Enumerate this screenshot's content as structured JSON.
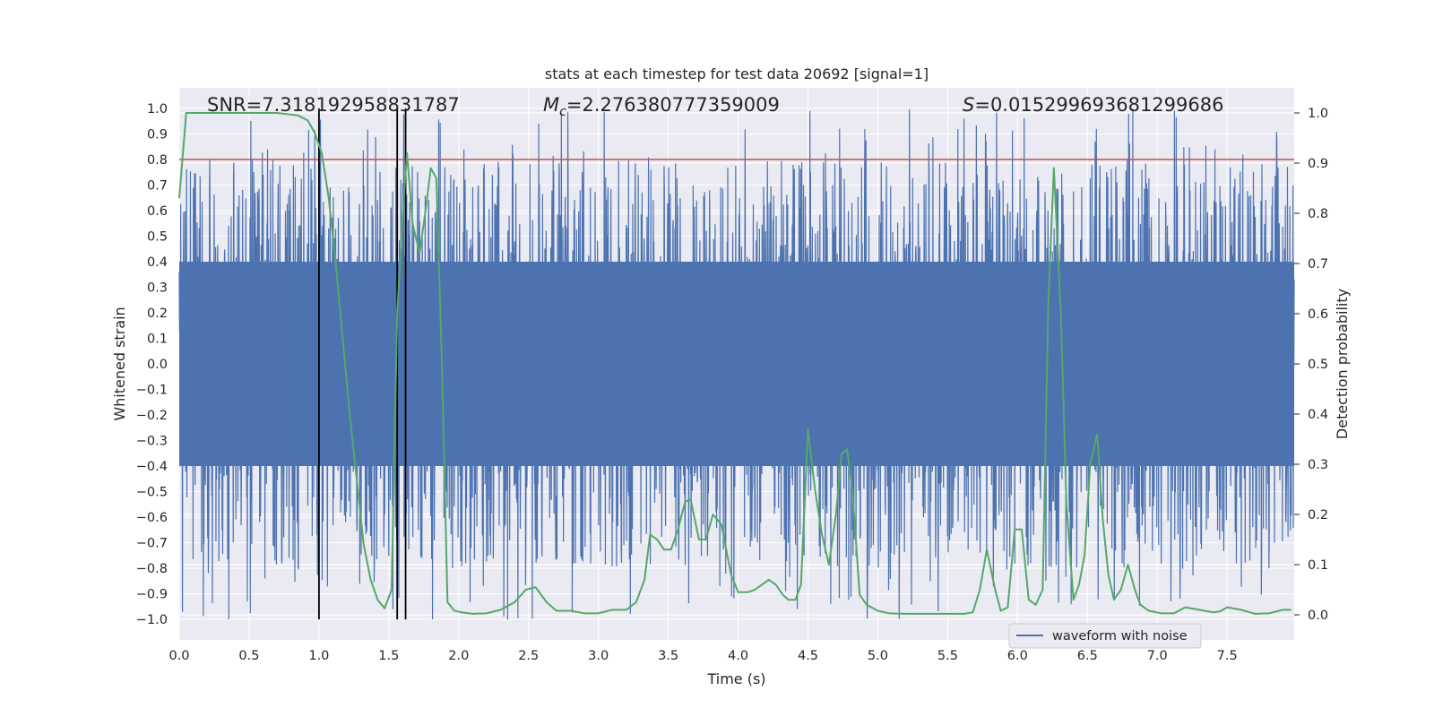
{
  "chart_data": {
    "type": "line",
    "title": "stats at each timestep for test data 20692 [signal=1]",
    "xlabel": "Time (s)",
    "ylabel": "Whitened strain",
    "ylabel_right": "Detection probability",
    "xlim": [
      0.0,
      7.98
    ],
    "ylim": [
      -1.08,
      1.08
    ],
    "ylim_right": [
      -0.05,
      1.05
    ],
    "x_ticks": [
      "0.0",
      "0.5",
      "1.0",
      "1.5",
      "2.0",
      "2.5",
      "3.0",
      "3.5",
      "4.0",
      "4.5",
      "5.0",
      "5.5",
      "6.0",
      "6.5",
      "7.0",
      "7.5"
    ],
    "y_ticks": [
      "1.0",
      "0.9",
      "0.8",
      "0.7",
      "0.6",
      "0.5",
      "0.4",
      "0.3",
      "0.2",
      "0.1",
      "0.0",
      "−0.1",
      "−0.2",
      "−0.3",
      "−0.4",
      "−0.5",
      "−0.6",
      "−0.7",
      "−0.8",
      "−0.9",
      "−1.0"
    ],
    "y_right_ticks": [
      "1.0",
      "0.9",
      "0.8",
      "0.7",
      "0.6",
      "0.5",
      "0.4",
      "0.3",
      "0.2",
      "0.1",
      "0.0"
    ],
    "grid": true,
    "threshold_line": {
      "y": 0.8,
      "color": "#c44e52"
    },
    "vertical_lines": [
      1.0,
      1.56,
      1.62
    ],
    "annotations": {
      "snr": "SNR=7.318192958831787",
      "mc_symbol": "M",
      "mc_sub": "c",
      "mc_value": "=2.276380777359009",
      "s_symbol": "S",
      "s_value": "=0.015299693681299686"
    },
    "legend": {
      "label": "waveform with noise",
      "placement": "lower-right"
    },
    "series": [
      {
        "name": "waveform with noise",
        "color": "#4c72b0",
        "axis": "left",
        "core_amplitude": 0.4,
        "typical_peak_range": [
          0.3,
          0.8
        ],
        "max_abs": 1.0
      },
      {
        "name": "detection probability",
        "color": "#55a868",
        "axis": "right",
        "x": [
          0.0,
          0.05,
          0.15,
          0.3,
          0.5,
          0.7,
          0.85,
          0.92,
          0.97,
          1.02,
          1.07,
          1.12,
          1.17,
          1.22,
          1.27,
          1.32,
          1.37,
          1.42,
          1.47,
          1.52,
          1.56,
          1.6,
          1.63,
          1.67,
          1.72,
          1.77,
          1.8,
          1.84,
          1.88,
          1.92,
          1.97,
          2.02,
          2.1,
          2.2,
          2.3,
          2.4,
          2.48,
          2.55,
          2.63,
          2.7,
          2.8,
          2.9,
          3.0,
          3.1,
          3.15,
          3.2,
          3.27,
          3.33,
          3.37,
          3.42,
          3.47,
          3.52,
          3.57,
          3.62,
          3.66,
          3.72,
          3.77,
          3.82,
          3.88,
          3.95,
          4.0,
          4.07,
          4.12,
          4.17,
          4.22,
          4.27,
          4.32,
          4.36,
          4.41,
          4.45,
          4.5,
          4.55,
          4.6,
          4.65,
          4.7,
          4.74,
          4.78,
          4.82,
          4.87,
          4.92,
          5.0,
          5.08,
          5.2,
          5.35,
          5.5,
          5.62,
          5.68,
          5.73,
          5.78,
          5.84,
          5.88,
          5.93,
          5.98,
          6.03,
          6.08,
          6.13,
          6.18,
          6.22,
          6.26,
          6.31,
          6.35,
          6.4,
          6.44,
          6.48,
          6.52,
          6.57,
          6.61,
          6.65,
          6.69,
          6.74,
          6.79,
          6.84,
          6.88,
          6.94,
          7.03,
          7.12,
          7.2,
          7.3,
          7.4,
          7.45,
          7.5,
          7.6,
          7.7,
          7.8,
          7.9,
          7.96
        ],
        "y": [
          0.83,
          1.0,
          1.0,
          1.0,
          1.0,
          1.0,
          0.995,
          0.985,
          0.96,
          0.92,
          0.83,
          0.7,
          0.55,
          0.4,
          0.27,
          0.14,
          0.07,
          0.03,
          0.013,
          0.05,
          0.6,
          0.8,
          0.92,
          0.78,
          0.72,
          0.82,
          0.89,
          0.87,
          0.5,
          0.025,
          0.008,
          0.005,
          0.002,
          0.003,
          0.01,
          0.025,
          0.05,
          0.055,
          0.025,
          0.008,
          0.008,
          0.003,
          0.003,
          0.01,
          0.01,
          0.01,
          0.025,
          0.07,
          0.16,
          0.15,
          0.13,
          0.13,
          0.17,
          0.225,
          0.23,
          0.15,
          0.15,
          0.2,
          0.18,
          0.08,
          0.045,
          0.045,
          0.05,
          0.06,
          0.07,
          0.06,
          0.04,
          0.03,
          0.03,
          0.06,
          0.37,
          0.25,
          0.16,
          0.1,
          0.2,
          0.32,
          0.33,
          0.24,
          0.04,
          0.02,
          0.008,
          0.003,
          0.002,
          0.002,
          0.002,
          0.002,
          0.005,
          0.05,
          0.13,
          0.05,
          0.008,
          0.015,
          0.17,
          0.17,
          0.03,
          0.02,
          0.05,
          0.62,
          0.89,
          0.6,
          0.22,
          0.03,
          0.06,
          0.12,
          0.3,
          0.36,
          0.19,
          0.08,
          0.03,
          0.05,
          0.1,
          0.05,
          0.02,
          0.008,
          0.003,
          0.003,
          0.015,
          0.01,
          0.005,
          0.007,
          0.015,
          0.01,
          0.002,
          0.003,
          0.01,
          0.01
        ]
      }
    ]
  }
}
